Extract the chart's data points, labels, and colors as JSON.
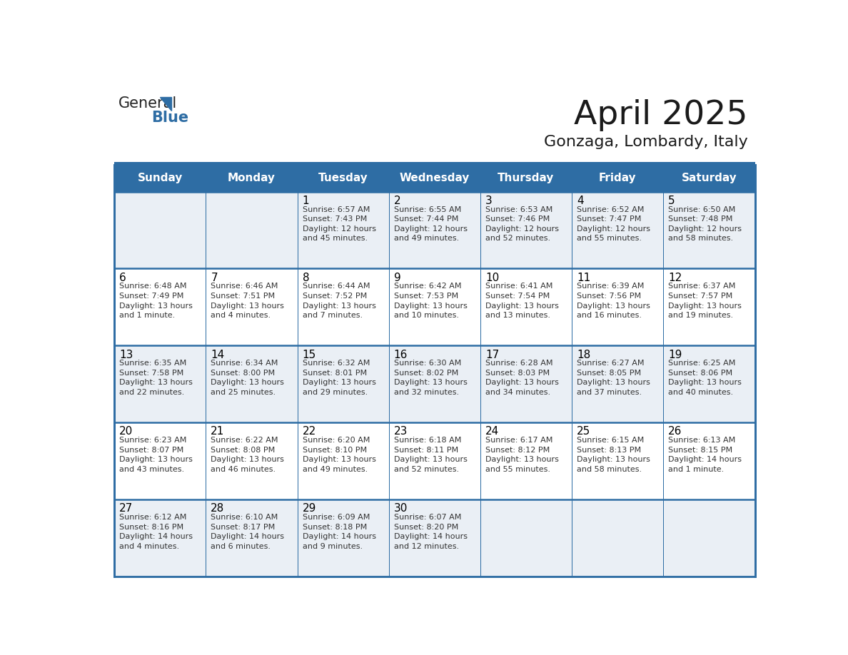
{
  "title": "April 2025",
  "subtitle": "Gonzaga, Lombardy, Italy",
  "header_bg": "#2E6DA4",
  "header_text_color": "#FFFFFF",
  "cell_bg_light": "#EAEFF5",
  "cell_bg_white": "#FFFFFF",
  "grid_line_color": "#2E6DA4",
  "day_number_color": "#000000",
  "cell_text_color": "#333333",
  "day_headers": [
    "Sunday",
    "Monday",
    "Tuesday",
    "Wednesday",
    "Thursday",
    "Friday",
    "Saturday"
  ],
  "calendar": [
    [
      {
        "day": "",
        "text": ""
      },
      {
        "day": "",
        "text": ""
      },
      {
        "day": "1",
        "text": "Sunrise: 6:57 AM\nSunset: 7:43 PM\nDaylight: 12 hours\nand 45 minutes."
      },
      {
        "day": "2",
        "text": "Sunrise: 6:55 AM\nSunset: 7:44 PM\nDaylight: 12 hours\nand 49 minutes."
      },
      {
        "day": "3",
        "text": "Sunrise: 6:53 AM\nSunset: 7:46 PM\nDaylight: 12 hours\nand 52 minutes."
      },
      {
        "day": "4",
        "text": "Sunrise: 6:52 AM\nSunset: 7:47 PM\nDaylight: 12 hours\nand 55 minutes."
      },
      {
        "day": "5",
        "text": "Sunrise: 6:50 AM\nSunset: 7:48 PM\nDaylight: 12 hours\nand 58 minutes."
      }
    ],
    [
      {
        "day": "6",
        "text": "Sunrise: 6:48 AM\nSunset: 7:49 PM\nDaylight: 13 hours\nand 1 minute."
      },
      {
        "day": "7",
        "text": "Sunrise: 6:46 AM\nSunset: 7:51 PM\nDaylight: 13 hours\nand 4 minutes."
      },
      {
        "day": "8",
        "text": "Sunrise: 6:44 AM\nSunset: 7:52 PM\nDaylight: 13 hours\nand 7 minutes."
      },
      {
        "day": "9",
        "text": "Sunrise: 6:42 AM\nSunset: 7:53 PM\nDaylight: 13 hours\nand 10 minutes."
      },
      {
        "day": "10",
        "text": "Sunrise: 6:41 AM\nSunset: 7:54 PM\nDaylight: 13 hours\nand 13 minutes."
      },
      {
        "day": "11",
        "text": "Sunrise: 6:39 AM\nSunset: 7:56 PM\nDaylight: 13 hours\nand 16 minutes."
      },
      {
        "day": "12",
        "text": "Sunrise: 6:37 AM\nSunset: 7:57 PM\nDaylight: 13 hours\nand 19 minutes."
      }
    ],
    [
      {
        "day": "13",
        "text": "Sunrise: 6:35 AM\nSunset: 7:58 PM\nDaylight: 13 hours\nand 22 minutes."
      },
      {
        "day": "14",
        "text": "Sunrise: 6:34 AM\nSunset: 8:00 PM\nDaylight: 13 hours\nand 25 minutes."
      },
      {
        "day": "15",
        "text": "Sunrise: 6:32 AM\nSunset: 8:01 PM\nDaylight: 13 hours\nand 29 minutes."
      },
      {
        "day": "16",
        "text": "Sunrise: 6:30 AM\nSunset: 8:02 PM\nDaylight: 13 hours\nand 32 minutes."
      },
      {
        "day": "17",
        "text": "Sunrise: 6:28 AM\nSunset: 8:03 PM\nDaylight: 13 hours\nand 34 minutes."
      },
      {
        "day": "18",
        "text": "Sunrise: 6:27 AM\nSunset: 8:05 PM\nDaylight: 13 hours\nand 37 minutes."
      },
      {
        "day": "19",
        "text": "Sunrise: 6:25 AM\nSunset: 8:06 PM\nDaylight: 13 hours\nand 40 minutes."
      }
    ],
    [
      {
        "day": "20",
        "text": "Sunrise: 6:23 AM\nSunset: 8:07 PM\nDaylight: 13 hours\nand 43 minutes."
      },
      {
        "day": "21",
        "text": "Sunrise: 6:22 AM\nSunset: 8:08 PM\nDaylight: 13 hours\nand 46 minutes."
      },
      {
        "day": "22",
        "text": "Sunrise: 6:20 AM\nSunset: 8:10 PM\nDaylight: 13 hours\nand 49 minutes."
      },
      {
        "day": "23",
        "text": "Sunrise: 6:18 AM\nSunset: 8:11 PM\nDaylight: 13 hours\nand 52 minutes."
      },
      {
        "day": "24",
        "text": "Sunrise: 6:17 AM\nSunset: 8:12 PM\nDaylight: 13 hours\nand 55 minutes."
      },
      {
        "day": "25",
        "text": "Sunrise: 6:15 AM\nSunset: 8:13 PM\nDaylight: 13 hours\nand 58 minutes."
      },
      {
        "day": "26",
        "text": "Sunrise: 6:13 AM\nSunset: 8:15 PM\nDaylight: 14 hours\nand 1 minute."
      }
    ],
    [
      {
        "day": "27",
        "text": "Sunrise: 6:12 AM\nSunset: 8:16 PM\nDaylight: 14 hours\nand 4 minutes."
      },
      {
        "day": "28",
        "text": "Sunrise: 6:10 AM\nSunset: 8:17 PM\nDaylight: 14 hours\nand 6 minutes."
      },
      {
        "day": "29",
        "text": "Sunrise: 6:09 AM\nSunset: 8:18 PM\nDaylight: 14 hours\nand 9 minutes."
      },
      {
        "day": "30",
        "text": "Sunrise: 6:07 AM\nSunset: 8:20 PM\nDaylight: 14 hours\nand 12 minutes."
      },
      {
        "day": "",
        "text": ""
      },
      {
        "day": "",
        "text": ""
      },
      {
        "day": "",
        "text": ""
      }
    ]
  ]
}
